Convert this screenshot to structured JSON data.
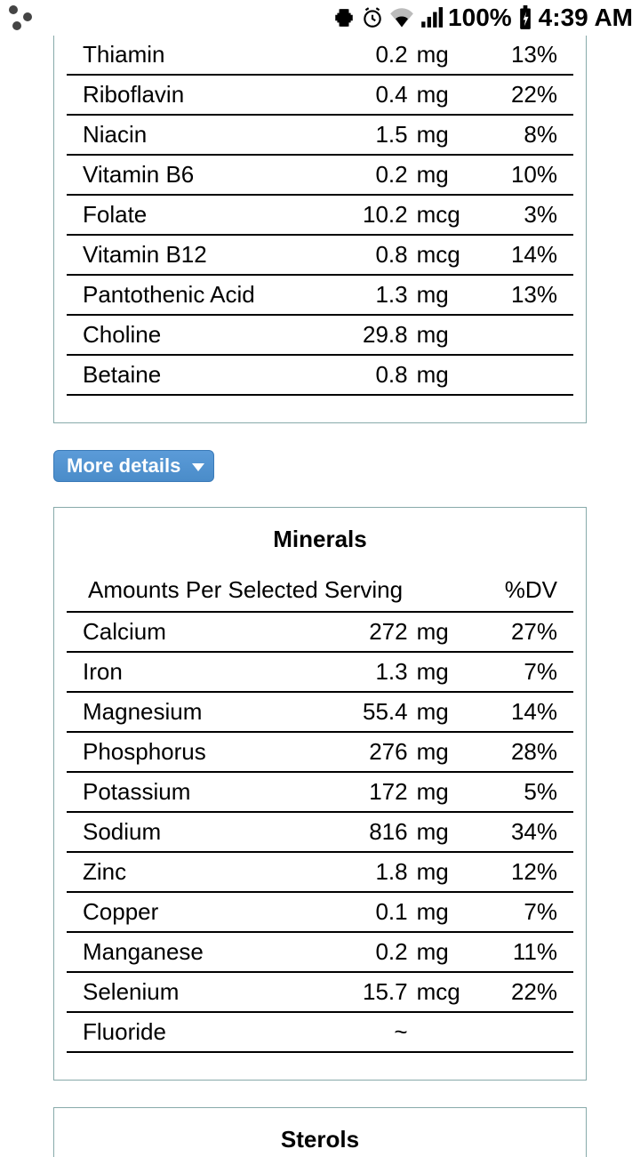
{
  "status_bar": {
    "battery_pct": "100%",
    "time": "4:39 AM"
  },
  "vitamins_table": {
    "rows": [
      {
        "name": "Thiamin",
        "amount": "0.2",
        "unit": "mg",
        "dv": "13%"
      },
      {
        "name": "Riboflavin",
        "amount": "0.4",
        "unit": "mg",
        "dv": "22%"
      },
      {
        "name": "Niacin",
        "amount": "1.5",
        "unit": "mg",
        "dv": "8%"
      },
      {
        "name": "Vitamin B6",
        "amount": "0.2",
        "unit": "mg",
        "dv": "10%"
      },
      {
        "name": "Folate",
        "amount": "10.2",
        "unit": "mcg",
        "dv": "3%"
      },
      {
        "name": "Vitamin B12",
        "amount": "0.8",
        "unit": "mcg",
        "dv": "14%"
      },
      {
        "name": "Pantothenic Acid",
        "amount": "1.3",
        "unit": "mg",
        "dv": "13%"
      },
      {
        "name": "Choline",
        "amount": "29.8",
        "unit": "mg",
        "dv": ""
      },
      {
        "name": "Betaine",
        "amount": "0.8",
        "unit": "mg",
        "dv": ""
      }
    ]
  },
  "more_details_label": "More details",
  "minerals_section": {
    "title": "Minerals",
    "header_left": "Amounts Per Selected Serving",
    "header_right": "%DV",
    "rows": [
      {
        "name": "Calcium",
        "amount": "272",
        "unit": "mg",
        "dv": "27%"
      },
      {
        "name": "Iron",
        "amount": "1.3",
        "unit": "mg",
        "dv": "7%"
      },
      {
        "name": "Magnesium",
        "amount": "55.4",
        "unit": "mg",
        "dv": "14%"
      },
      {
        "name": "Phosphorus",
        "amount": "276",
        "unit": "mg",
        "dv": "28%"
      },
      {
        "name": "Potassium",
        "amount": "172",
        "unit": "mg",
        "dv": "5%"
      },
      {
        "name": "Sodium",
        "amount": "816",
        "unit": "mg",
        "dv": "34%"
      },
      {
        "name": "Zinc",
        "amount": "1.8",
        "unit": "mg",
        "dv": "12%"
      },
      {
        "name": "Copper",
        "amount": "0.1",
        "unit": "mg",
        "dv": "7%"
      },
      {
        "name": "Manganese",
        "amount": "0.2",
        "unit": "mg",
        "dv": "11%"
      },
      {
        "name": "Selenium",
        "amount": "15.7",
        "unit": "mcg",
        "dv": "22%"
      },
      {
        "name": "Fluoride",
        "amount": "~",
        "unit": "",
        "dv": ""
      }
    ]
  },
  "sterols_section": {
    "title": "Sterols"
  },
  "colors": {
    "panel_border": "#88aaaa",
    "row_border": "#000000",
    "button_bg_top": "#5b9bd8",
    "button_bg_bottom": "#4a8cc9",
    "text": "#000000"
  }
}
